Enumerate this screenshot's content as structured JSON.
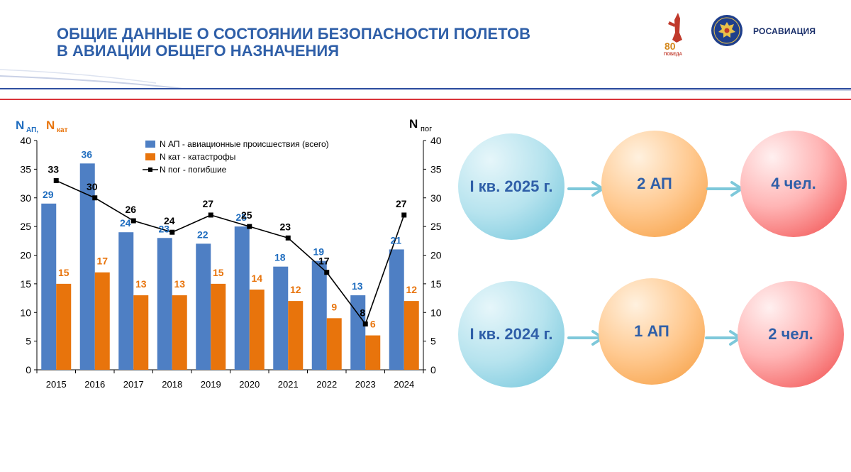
{
  "header": {
    "title_line1": "ОБЩИЕ ДАННЫЕ О СОСТОЯНИИ БЕЗОПАСНОСТИ ПОЛЕТОВ",
    "title_line2": "В АВИАЦИИ ОБЩЕГО НАЗНАЧЕНИЯ",
    "logo_victory_text": "80 ПОБЕДА",
    "logo_agency": "РОСАВИАЦИЯ"
  },
  "colors": {
    "title": "#2f5fa8",
    "bar_ap": "#4e7fc4",
    "bar_kat": "#e8740c",
    "line": "#000000",
    "label_ap": "#1f6dbf",
    "label_kat": "#e8740c"
  },
  "chart_data": {
    "type": "bar",
    "categories": [
      "2015",
      "2016",
      "2017",
      "2018",
      "2019",
      "2020",
      "2021",
      "2022",
      "2023",
      "2024"
    ],
    "series": [
      {
        "name": "N АП - авиационные происшествия (всего)",
        "type": "bar",
        "axis": "left",
        "values": [
          29,
          36,
          24,
          23,
          22,
          25,
          18,
          19,
          13,
          21
        ]
      },
      {
        "name": "N кат - катастрофы",
        "type": "bar",
        "axis": "left",
        "values": [
          15,
          17,
          13,
          13,
          15,
          14,
          12,
          9,
          6,
          12
        ]
      },
      {
        "name": "N пог - погибшие",
        "type": "line",
        "axis": "right",
        "values": [
          33,
          30,
          26,
          24,
          27,
          25,
          23,
          17,
          8,
          27
        ]
      }
    ],
    "y_left_label_main": "N",
    "y_left_label_sub": "АП,",
    "y_left_label2_main": "N",
    "y_left_label2_sub": "кат",
    "y_right_label_main": "N",
    "y_right_label_sub": "пог",
    "ylim": [
      0,
      40
    ],
    "yticks": [
      0,
      5,
      10,
      15,
      20,
      25,
      30,
      35,
      40
    ],
    "grid": false,
    "legend_position": "top-right"
  },
  "flow": {
    "rows": [
      {
        "period": "I кв. 2025 г.",
        "accidents": "2 АП",
        "fatalities": "4 чел."
      },
      {
        "period": "I кв. 2024 г.",
        "accidents": "1 АП",
        "fatalities": "2 чел."
      }
    ]
  }
}
